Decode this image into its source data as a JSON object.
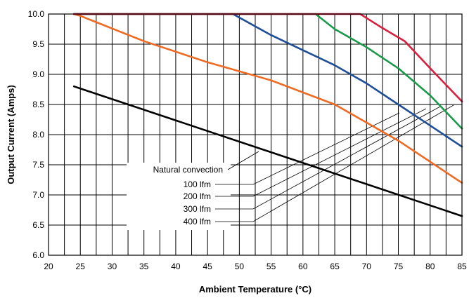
{
  "chart_data": {
    "type": "line",
    "title": "",
    "xlabel": "Ambient Temperature (°C)",
    "ylabel": "Output Current (Amps)",
    "xlim": [
      20,
      85
    ],
    "ylim": [
      6.0,
      10.0
    ],
    "x_ticks": [
      "20",
      "25",
      "30",
      "35",
      "40",
      "45",
      "50",
      "55",
      "60",
      "65",
      "70",
      "75",
      "80",
      "85"
    ],
    "y_ticks": [
      "6.0",
      "6.5",
      "7.0",
      "7.5",
      "8.0",
      "8.5",
      "9.0",
      "9.5",
      "10.0"
    ],
    "grid": true,
    "series": [
      {
        "name": "Natural convection",
        "color": "#000000",
        "x": [
          24,
          85
        ],
        "y": [
          8.8,
          6.65
        ]
      },
      {
        "name": "100 lfm",
        "color": "#ef6a22",
        "x": [
          24,
          25,
          35,
          45,
          55,
          65,
          75,
          85
        ],
        "y": [
          10.0,
          9.97,
          9.55,
          9.2,
          8.9,
          8.5,
          7.9,
          7.2
        ]
      },
      {
        "name": "200 lfm",
        "color": "#1f4e96",
        "x": [
          24,
          49,
          55,
          60,
          65,
          70,
          75,
          80,
          85
        ],
        "y": [
          10.0,
          10.0,
          9.65,
          9.4,
          9.15,
          8.85,
          8.5,
          8.15,
          7.8
        ]
      },
      {
        "name": "300 lfm",
        "color": "#1a9a4a",
        "x": [
          24,
          62,
          65,
          70,
          75,
          80,
          85
        ],
        "y": [
          10.0,
          10.0,
          9.75,
          9.45,
          9.1,
          8.65,
          8.1
        ]
      },
      {
        "name": "400 lfm",
        "color": "#d81f3e",
        "x": [
          24,
          69,
          72,
          76,
          80,
          85
        ],
        "y": [
          10.0,
          10.0,
          9.8,
          9.55,
          9.1,
          8.55
        ]
      }
    ],
    "legend": {
      "placement": "center-left",
      "labels": [
        "Natural convection",
        "100 lfm",
        "200 lfm",
        "300 lfm",
        "400 lfm"
      ]
    }
  }
}
